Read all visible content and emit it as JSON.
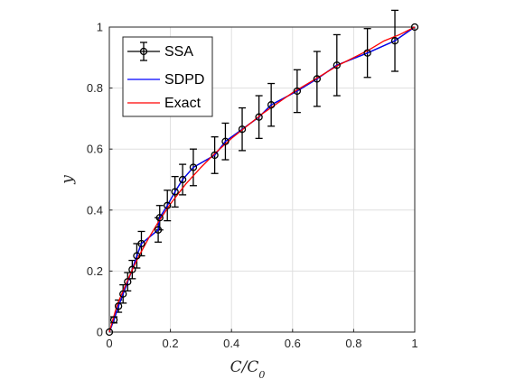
{
  "chart_data": {
    "type": "line",
    "xlabel_main": "C/C",
    "xlabel_sub": "0",
    "ylabel": "y",
    "xlim": [
      0,
      1
    ],
    "ylim": [
      0,
      1
    ],
    "x_ticks": [
      "0",
      "0.2",
      "0.4",
      "0.6",
      "0.8",
      "1"
    ],
    "y_ticks": [
      "0",
      "0.2",
      "0.4",
      "0.6",
      "0.8",
      "1"
    ],
    "grid": true,
    "legend_position": "top-left",
    "legend": [
      {
        "label": "SSA",
        "color": "#000000",
        "style": "errorbar-circle"
      },
      {
        "label": "SDPD",
        "color": "#0000ff",
        "style": "line"
      },
      {
        "label": "Exact",
        "color": "#ff0000",
        "style": "line"
      }
    ],
    "ssa": [
      {
        "x": 0.0,
        "y": 0.0,
        "err": 0.0
      },
      {
        "x": 0.015,
        "y": 0.04,
        "err": 0.01
      },
      {
        "x": 0.03,
        "y": 0.085,
        "err": 0.02
      },
      {
        "x": 0.045,
        "y": 0.125,
        "err": 0.03
      },
      {
        "x": 0.06,
        "y": 0.165,
        "err": 0.03
      },
      {
        "x": 0.075,
        "y": 0.205,
        "err": 0.03
      },
      {
        "x": 0.09,
        "y": 0.25,
        "err": 0.04
      },
      {
        "x": 0.105,
        "y": 0.29,
        "err": 0.04
      },
      {
        "x": 0.16,
        "y": 0.335,
        "err": 0.04
      },
      {
        "x": 0.165,
        "y": 0.375,
        "err": 0.04
      },
      {
        "x": 0.19,
        "y": 0.415,
        "err": 0.05
      },
      {
        "x": 0.215,
        "y": 0.46,
        "err": 0.05
      },
      {
        "x": 0.24,
        "y": 0.5,
        "err": 0.05
      },
      {
        "x": 0.275,
        "y": 0.54,
        "err": 0.06
      },
      {
        "x": 0.345,
        "y": 0.58,
        "err": 0.06
      },
      {
        "x": 0.38,
        "y": 0.625,
        "err": 0.06
      },
      {
        "x": 0.435,
        "y": 0.665,
        "err": 0.07
      },
      {
        "x": 0.49,
        "y": 0.705,
        "err": 0.07
      },
      {
        "x": 0.53,
        "y": 0.745,
        "err": 0.07
      },
      {
        "x": 0.615,
        "y": 0.79,
        "err": 0.07
      },
      {
        "x": 0.68,
        "y": 0.83,
        "err": 0.09
      },
      {
        "x": 0.745,
        "y": 0.875,
        "err": 0.1
      },
      {
        "x": 0.845,
        "y": 0.915,
        "err": 0.08
      },
      {
        "x": 0.935,
        "y": 0.955,
        "err": 0.1
      },
      {
        "x": 1.0,
        "y": 1.0,
        "err": 0.0
      }
    ],
    "sdpd": {
      "x": [
        0,
        0.015,
        0.03,
        0.045,
        0.06,
        0.075,
        0.09,
        0.105,
        0.16,
        0.165,
        0.19,
        0.215,
        0.24,
        0.275,
        0.345,
        0.38,
        0.435,
        0.49,
        0.53,
        0.615,
        0.68,
        0.745,
        0.845,
        0.935,
        1
      ],
      "y": [
        0,
        0.04,
        0.085,
        0.125,
        0.165,
        0.205,
        0.25,
        0.29,
        0.335,
        0.375,
        0.415,
        0.46,
        0.5,
        0.54,
        0.58,
        0.625,
        0.665,
        0.705,
        0.745,
        0.79,
        0.83,
        0.875,
        0.915,
        0.955,
        1
      ]
    },
    "exact": {
      "x": [
        0,
        0.01,
        0.02,
        0.03,
        0.045,
        0.06,
        0.08,
        0.1,
        0.13,
        0.16,
        0.2,
        0.25,
        0.3,
        0.35,
        0.4,
        0.45,
        0.5,
        0.55,
        0.6,
        0.65,
        0.7,
        0.75,
        0.8,
        0.85,
        0.9,
        0.95,
        1
      ],
      "y": [
        0,
        0.035,
        0.07,
        0.1,
        0.135,
        0.17,
        0.215,
        0.255,
        0.31,
        0.36,
        0.42,
        0.485,
        0.54,
        0.59,
        0.635,
        0.675,
        0.715,
        0.75,
        0.785,
        0.815,
        0.845,
        0.875,
        0.9,
        0.925,
        0.955,
        0.975,
        1
      ]
    }
  }
}
